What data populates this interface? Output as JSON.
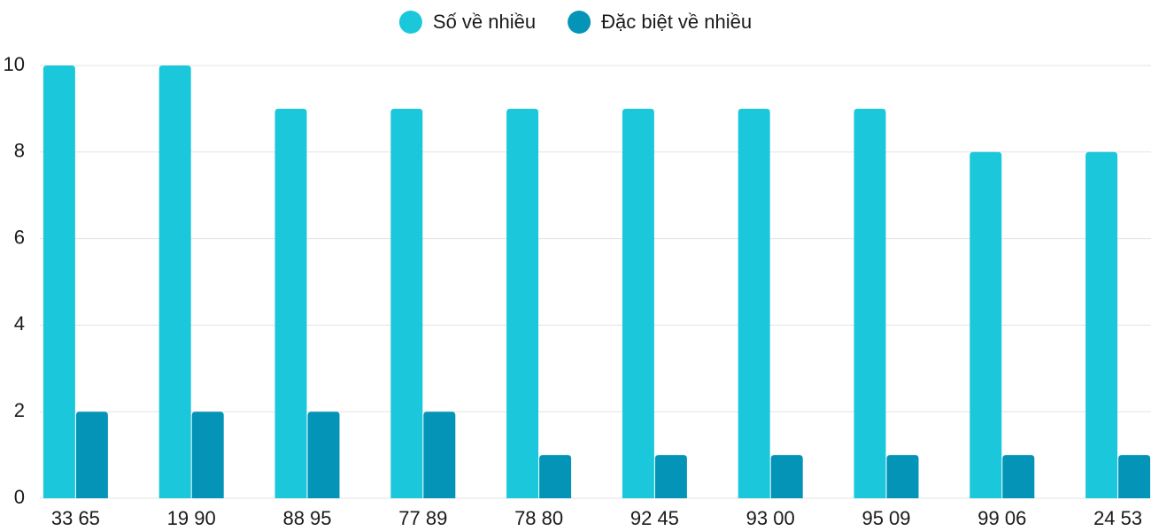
{
  "chart_data": {
    "type": "bar",
    "categories": [
      "33 65",
      "19 90",
      "88 95",
      "77 89",
      "78 80",
      "92 45",
      "93 00",
      "95 09",
      "99 06",
      "24 53"
    ],
    "series": [
      {
        "name": "Số về nhiều",
        "color": "#1bc8db",
        "values": [
          10,
          10,
          9,
          9,
          9,
          9,
          9,
          9,
          8,
          8
        ]
      },
      {
        "name": "Đặc biệt về nhiều",
        "color": "#0494b8",
        "values": [
          2,
          2,
          2,
          2,
          1,
          1,
          1,
          1,
          1,
          1
        ]
      }
    ],
    "ylim": [
      0,
      10
    ],
    "yticks": [
      0,
      2,
      4,
      6,
      8,
      10
    ],
    "grid": true,
    "legend": "top"
  }
}
